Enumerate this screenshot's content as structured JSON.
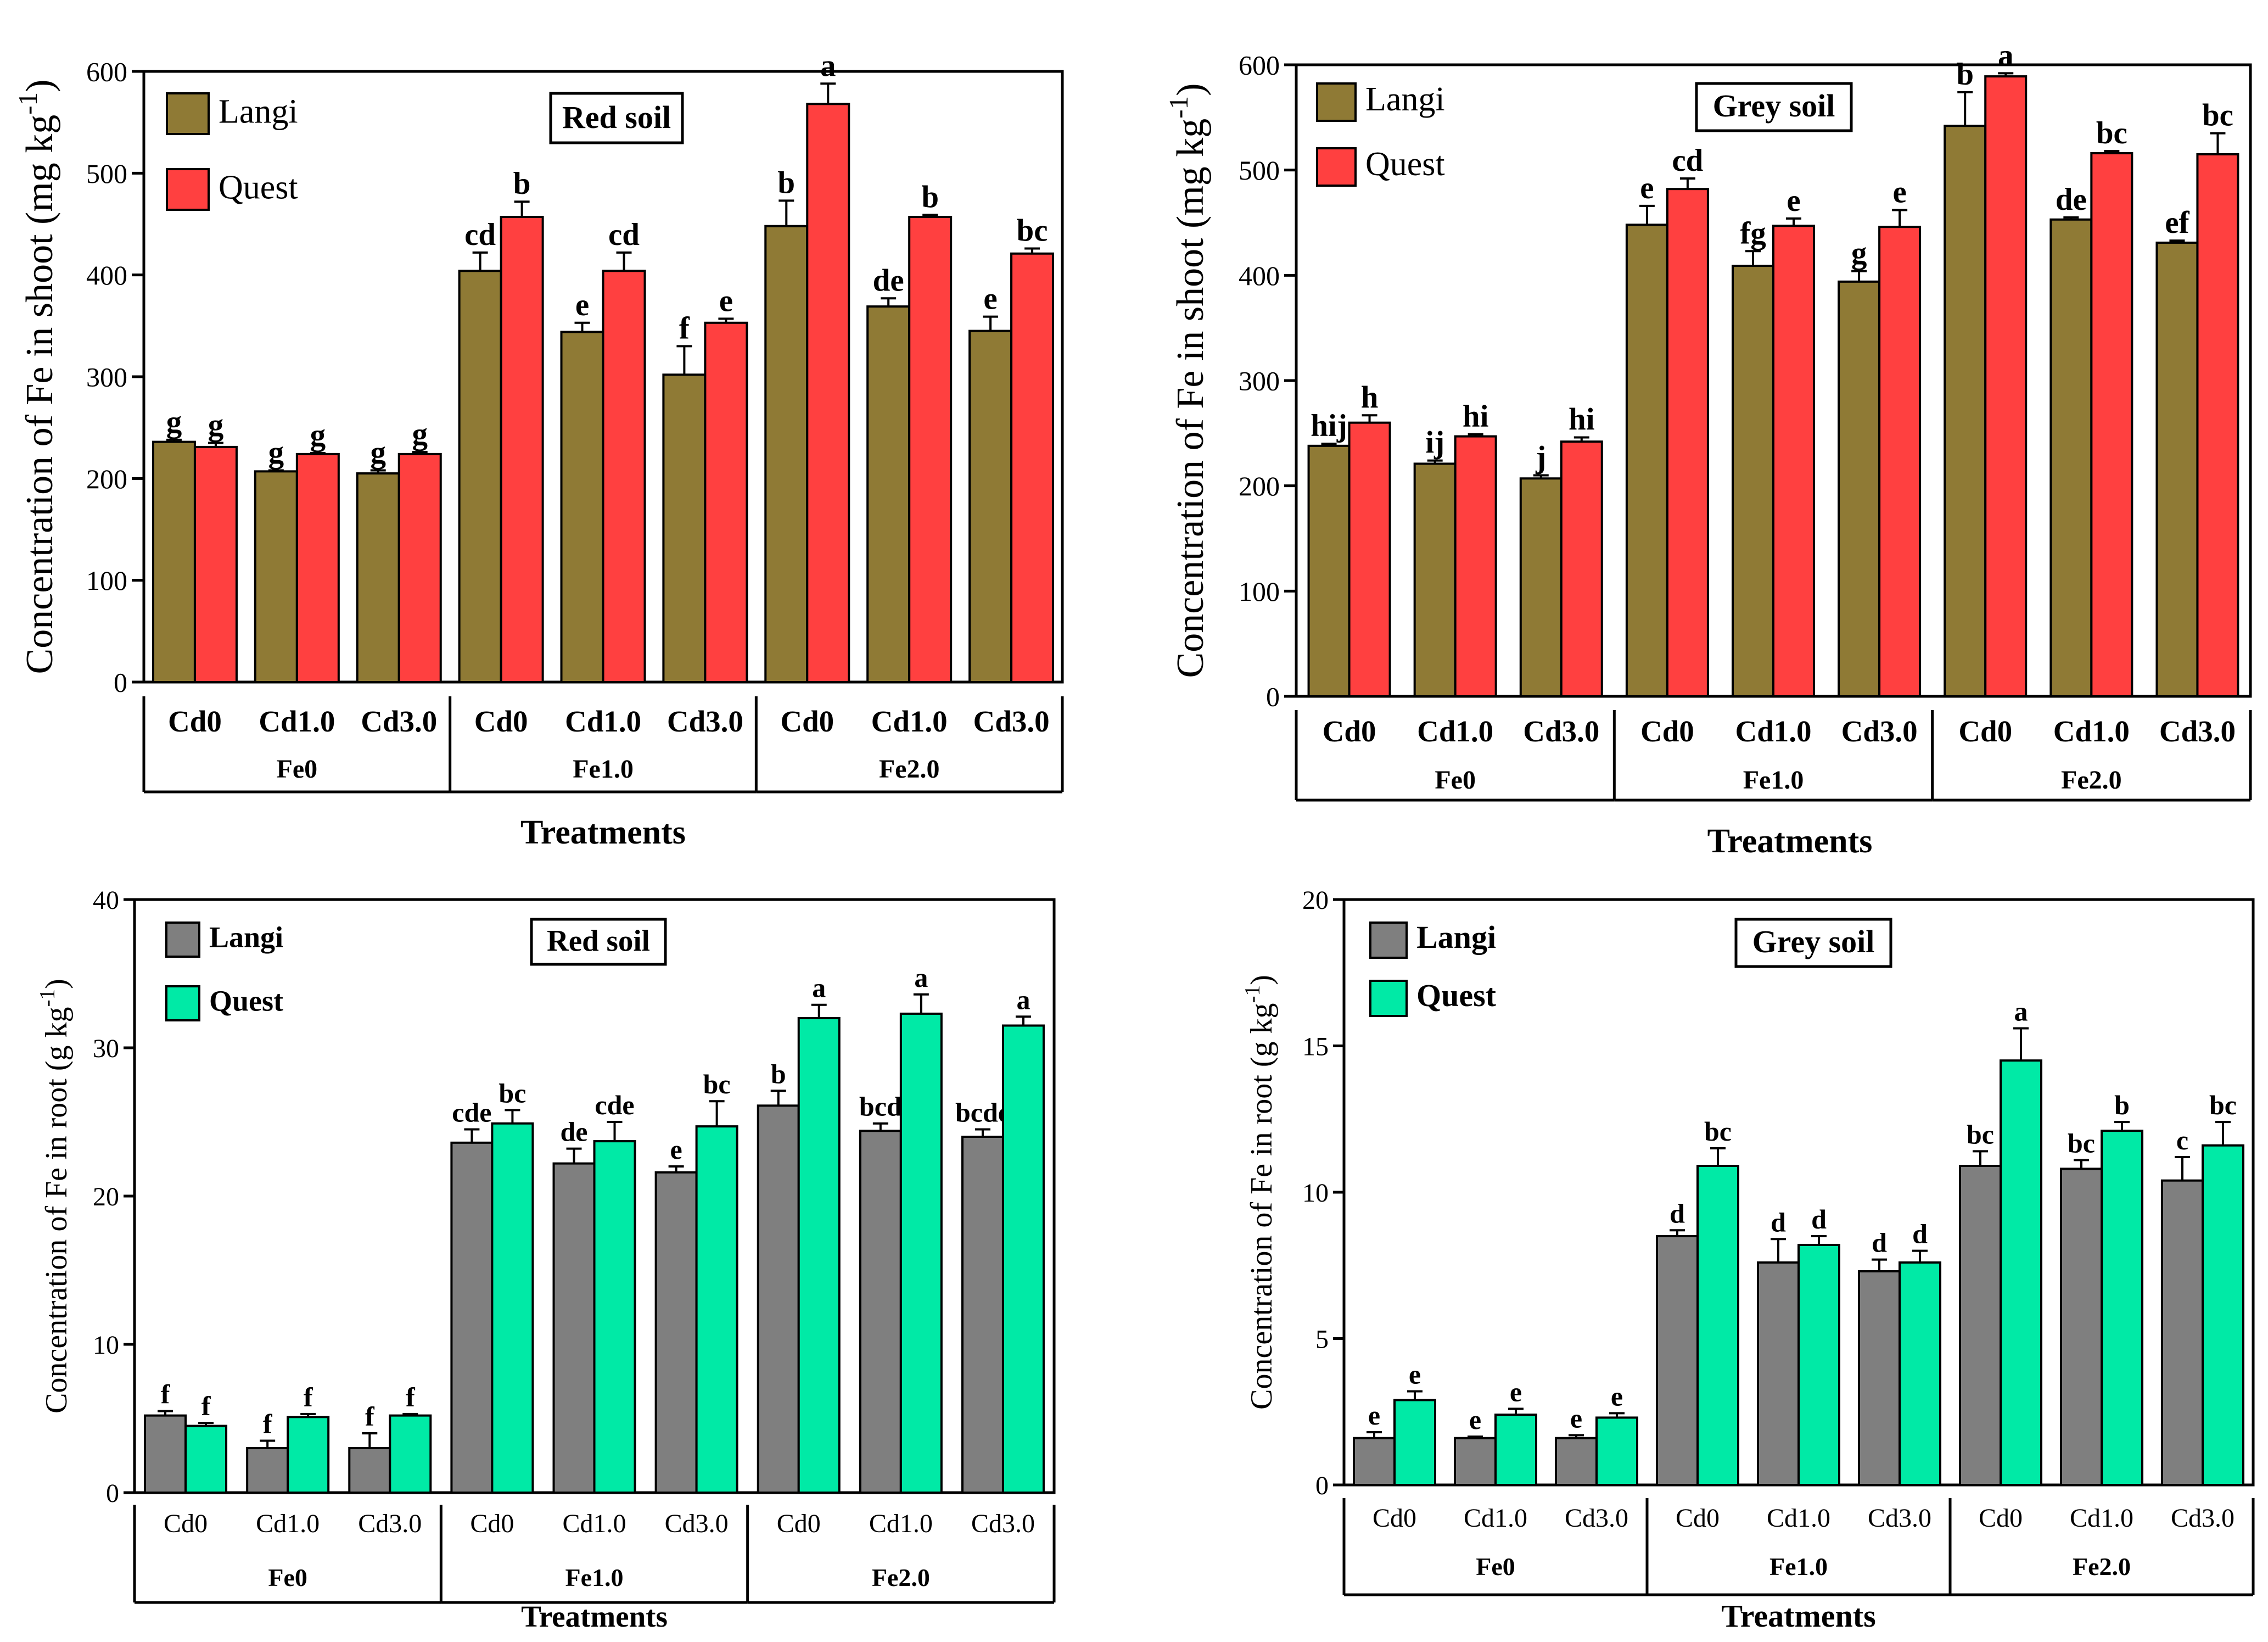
{
  "colors": {
    "shoot_langi": "#8f7a35",
    "shoot_quest": "#ff4040",
    "root_langi": "#7f7f7f",
    "root_quest": "#00eaa6",
    "axis": "#000000",
    "background": "#ffffff"
  },
  "chart_data": [
    {
      "type": "bar",
      "panel": "top-left",
      "title": "Red soil",
      "ylabel": "Concentration of Fe in shoot (mg kg",
      "ylabel_sup": "-1",
      "ylabel_close": ")",
      "xlabel": "Treatments",
      "ylim": [
        0,
        600
      ],
      "yticks": [
        "0",
        "100",
        "200",
        "300",
        "400",
        "500",
        "600"
      ],
      "categories": [
        "Cd0",
        "Cd1.0",
        "Cd3.0",
        "Cd0",
        "Cd1.0",
        "Cd3.0",
        "Cd0",
        "Cd1.0",
        "Cd3.0"
      ],
      "groups": [
        "Fe0",
        "Fe1.0",
        "Fe2.0"
      ],
      "legend_position": "top-left",
      "series": [
        {
          "name": "Langi",
          "values": [
            236,
            207,
            205,
            404,
            344,
            302,
            448,
            369,
            345
          ],
          "errors": [
            2,
            1,
            3,
            18,
            9,
            28,
            25,
            8,
            14
          ],
          "letters": [
            "g",
            "g",
            "g",
            "cd",
            "e",
            "f",
            "b",
            "de",
            "e"
          ]
        },
        {
          "name": "Quest",
          "values": [
            231,
            224,
            224,
            457,
            404,
            353,
            568,
            457,
            421
          ],
          "errors": [
            4,
            1,
            2,
            15,
            18,
            4,
            20,
            2,
            5
          ],
          "letters": [
            "g",
            "g",
            "g",
            "b",
            "cd",
            "e",
            "a",
            "b",
            "bc"
          ]
        }
      ]
    },
    {
      "type": "bar",
      "panel": "top-right",
      "title": "Grey soil",
      "ylabel": "Concentration of Fe in shoot (mg kg",
      "ylabel_sup": "-1",
      "ylabel_close": ")",
      "xlabel": "Treatments",
      "ylim": [
        0,
        600
      ],
      "yticks": [
        "0",
        "100",
        "200",
        "300",
        "400",
        "500",
        "600"
      ],
      "categories": [
        "Cd0",
        "Cd1.0",
        "Cd3.0",
        "Cd0",
        "Cd1.0",
        "Cd3.0",
        "Cd0",
        "Cd1.0",
        "Cd3.0"
      ],
      "groups": [
        "Fe0",
        "Fe1.0",
        "Fe2.0"
      ],
      "legend_position": "top-left",
      "series": [
        {
          "name": "Langi",
          "values": [
            238,
            221,
            207,
            448,
            409,
            394,
            542,
            453,
            431
          ],
          "errors": [
            2,
            3,
            3,
            18,
            14,
            10,
            32,
            2,
            2
          ],
          "letters": [
            "hij",
            "ij",
            "j",
            "e",
            "fg",
            "g",
            "b",
            "de",
            "ef"
          ]
        },
        {
          "name": "Quest",
          "values": [
            260,
            247,
            242,
            482,
            447,
            446,
            589,
            516,
            515
          ],
          "errors": [
            7,
            2,
            4,
            10,
            7,
            16,
            3,
            2,
            20
          ],
          "letters": [
            "h",
            "hi",
            "hi",
            "cd",
            "e",
            "e",
            "a",
            "bc",
            "bc"
          ]
        }
      ]
    },
    {
      "type": "bar",
      "panel": "bottom-left",
      "title": "Red soil",
      "ylabel": "Concentration of Fe in root (g kg",
      "ylabel_sup": "-1",
      "ylabel_close": ")",
      "xlabel": "Treatments",
      "ylim": [
        0,
        40
      ],
      "yticks": [
        "0",
        "10",
        "20",
        "30",
        "40"
      ],
      "categories": [
        "Cd0",
        "Cd1.0",
        "Cd3.0",
        "Cd0",
        "Cd1.0",
        "Cd3.0",
        "Cd0",
        "Cd1.0",
        "Cd3.0"
      ],
      "groups": [
        "Fe0",
        "Fe1.0",
        "Fe2.0"
      ],
      "legend_position": "top-left",
      "series": [
        {
          "name": "Langi",
          "values": [
            5.2,
            3.0,
            3.0,
            23.6,
            22.2,
            21.6,
            26.1,
            24.4,
            24.0
          ],
          "errors": [
            0.3,
            0.5,
            1.0,
            0.9,
            1.0,
            0.4,
            1.0,
            0.5,
            0.5
          ],
          "letters": [
            "f",
            "f",
            "f",
            "cde",
            "de",
            "e",
            "b",
            "bcd",
            "bcde"
          ]
        },
        {
          "name": "Quest",
          "values": [
            4.5,
            5.1,
            5.2,
            24.9,
            23.7,
            24.7,
            32.0,
            32.3,
            31.5
          ],
          "errors": [
            0.2,
            0.2,
            0.1,
            0.9,
            1.3,
            1.7,
            0.9,
            1.3,
            0.6
          ],
          "letters": [
            "f",
            "f",
            "f",
            "bc",
            "cde",
            "bc",
            "a",
            "a",
            "a"
          ]
        }
      ]
    },
    {
      "type": "bar",
      "panel": "bottom-right",
      "title": "Grey soil",
      "ylabel": "Concentration of Fe in root (g kg",
      "ylabel_sup": "-1",
      "ylabel_close": ")",
      "xlabel": "Treatments",
      "ylim": [
        0,
        20
      ],
      "yticks": [
        "0",
        "5",
        "10",
        "15",
        "20"
      ],
      "categories": [
        "Cd0",
        "Cd1.0",
        "Cd3.0",
        "Cd0",
        "Cd1.0",
        "Cd3.0",
        "Cd0",
        "Cd1.0",
        "Cd3.0"
      ],
      "groups": [
        "Fe0",
        "Fe1.0",
        "Fe2.0"
      ],
      "legend_position": "top-left",
      "series": [
        {
          "name": "Langi",
          "values": [
            1.6,
            1.6,
            1.6,
            8.5,
            7.6,
            7.3,
            10.9,
            10.8,
            10.4
          ],
          "errors": [
            0.2,
            0.05,
            0.1,
            0.2,
            0.8,
            0.4,
            0.5,
            0.3,
            0.8
          ],
          "letters": [
            "e",
            "e",
            "e",
            "d",
            "d",
            "d",
            "bc",
            "bc",
            "c"
          ]
        },
        {
          "name": "Quest",
          "values": [
            2.9,
            2.4,
            2.3,
            10.9,
            8.2,
            7.6,
            14.5,
            12.1,
            11.6
          ],
          "errors": [
            0.3,
            0.2,
            0.15,
            0.6,
            0.3,
            0.4,
            1.1,
            0.3,
            0.8
          ],
          "letters": [
            "e",
            "e",
            "e",
            "bc",
            "d",
            "d",
            "a",
            "b",
            "bc"
          ]
        }
      ]
    }
  ]
}
